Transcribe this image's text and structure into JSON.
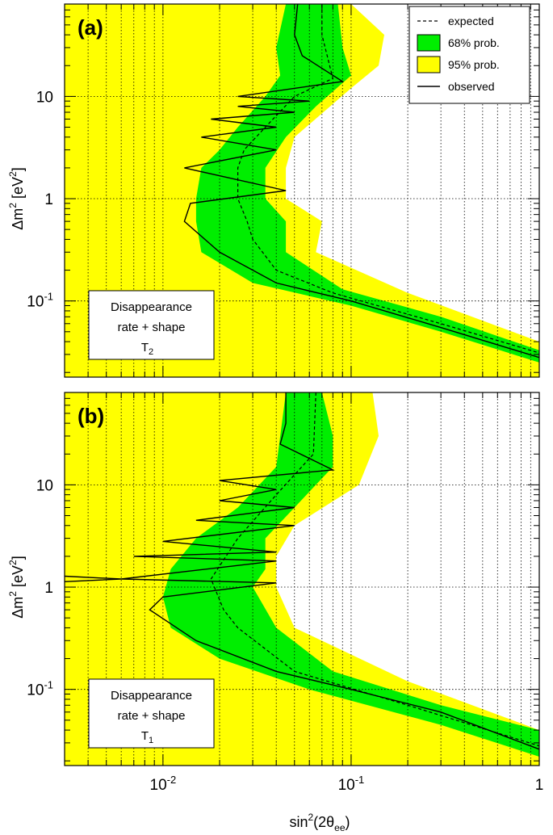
{
  "chart_data": {
    "type": "area",
    "xlabel": {
      "base": "sin",
      "sup": "2",
      "mid": "(2θ",
      "sub": "ee",
      "end": ")"
    },
    "ylabel": {
      "base": "Δm",
      "sup1": "2",
      "mid": " [eV",
      "sup2": "2",
      "end": "]"
    },
    "x_scale": "log",
    "y_scale": "log",
    "xlim": [
      0.003,
      1
    ],
    "ylim": [
      0.018,
      80
    ],
    "x_ticks": [
      {
        "value": 0.01,
        "base": "10",
        "exp": "-2"
      },
      {
        "value": 0.1,
        "base": "10",
        "exp": "-1"
      },
      {
        "value": 1,
        "base": "1",
        "exp": ""
      }
    ],
    "y_ticks": [
      {
        "value": 0.1,
        "base": "10",
        "exp": "-1"
      },
      {
        "value": 1,
        "base": "1",
        "exp": ""
      },
      {
        "value": 10,
        "base": "10",
        "exp": ""
      }
    ],
    "grid": true,
    "legend": {
      "placement": "top-right",
      "entries": [
        {
          "label": "expected",
          "style": "dashed"
        },
        {
          "label": "68% prob.",
          "color": "#00ee00"
        },
        {
          "label": "95% prob.",
          "color": "#ffff00"
        },
        {
          "label": "observed",
          "style": "solid"
        }
      ]
    },
    "colors": {
      "band68": "#00ee00",
      "band95": "#ffff00",
      "line": "#000000"
    },
    "panels": [
      {
        "tag": "(a)",
        "box_lines": [
          "Disappearance",
          "rate + shape"
        ],
        "box_stat": {
          "base": "T",
          "sub": "2"
        },
        "band95_right": [
          [
            0.1,
            80
          ],
          [
            0.15,
            40
          ],
          [
            0.14,
            20
          ],
          [
            0.1,
            12
          ],
          [
            0.05,
            4
          ],
          [
            0.045,
            2
          ],
          [
            0.045,
            1
          ],
          [
            0.07,
            0.6
          ],
          [
            0.065,
            0.3
          ],
          [
            0.2,
            0.12
          ],
          [
            1,
            0.04
          ]
        ],
        "band68_left": [
          [
            0.045,
            80
          ],
          [
            0.04,
            30
          ],
          [
            0.042,
            16
          ],
          [
            0.035,
            10
          ],
          [
            0.025,
            5
          ],
          [
            0.02,
            3
          ],
          [
            0.016,
            2
          ],
          [
            0.015,
            1
          ],
          [
            0.015,
            0.6
          ],
          [
            0.016,
            0.3
          ],
          [
            0.03,
            0.15
          ],
          [
            0.1,
            0.09
          ],
          [
            0.3,
            0.05
          ],
          [
            1,
            0.025
          ]
        ],
        "band68_right": [
          [
            0.085,
            80
          ],
          [
            0.09,
            30
          ],
          [
            0.1,
            16
          ],
          [
            0.065,
            8
          ],
          [
            0.045,
            4
          ],
          [
            0.035,
            2
          ],
          [
            0.035,
            1
          ],
          [
            0.045,
            0.6
          ],
          [
            0.045,
            0.3
          ],
          [
            0.09,
            0.13
          ],
          [
            0.3,
            0.07
          ],
          [
            1,
            0.033
          ]
        ],
        "expected": [
          [
            0.07,
            80
          ],
          [
            0.07,
            40
          ],
          [
            0.08,
            15
          ],
          [
            0.05,
            10
          ],
          [
            0.035,
            5
          ],
          [
            0.027,
            3
          ],
          [
            0.025,
            2
          ],
          [
            0.025,
            1
          ],
          [
            0.028,
            0.6
          ],
          [
            0.03,
            0.4
          ],
          [
            0.04,
            0.2
          ],
          [
            0.08,
            0.12
          ],
          [
            0.3,
            0.06
          ],
          [
            1,
            0.031
          ]
        ],
        "observed": [
          [
            0.052,
            80
          ],
          [
            0.05,
            40
          ],
          [
            0.055,
            25
          ],
          [
            0.09,
            14
          ],
          [
            0.025,
            10
          ],
          [
            0.06,
            9
          ],
          [
            0.025,
            8
          ],
          [
            0.05,
            7
          ],
          [
            0.018,
            6
          ],
          [
            0.04,
            5
          ],
          [
            0.016,
            4
          ],
          [
            0.04,
            3
          ],
          [
            0.013,
            2
          ],
          [
            0.045,
            1.2
          ],
          [
            0.014,
            0.9
          ],
          [
            0.013,
            0.6
          ],
          [
            0.02,
            0.3
          ],
          [
            0.04,
            0.15
          ],
          [
            0.1,
            0.1
          ],
          [
            0.3,
            0.055
          ],
          [
            1,
            0.028
          ]
        ]
      },
      {
        "tag": "(b)",
        "box_lines": [
          "Disappearance",
          "rate + shape"
        ],
        "box_stat": {
          "base": "T",
          "sub": "1"
        },
        "band95_right": [
          [
            0.13,
            80
          ],
          [
            0.14,
            30
          ],
          [
            0.11,
            10
          ],
          [
            0.05,
            4
          ],
          [
            0.04,
            2
          ],
          [
            0.04,
            1
          ],
          [
            0.05,
            0.4
          ],
          [
            0.2,
            0.12
          ],
          [
            1,
            0.04
          ]
        ],
        "band68_left": [
          [
            0.045,
            80
          ],
          [
            0.04,
            15
          ],
          [
            0.025,
            6
          ],
          [
            0.015,
            3
          ],
          [
            0.011,
            1.5
          ],
          [
            0.01,
            0.8
          ],
          [
            0.011,
            0.4
          ],
          [
            0.02,
            0.2
          ],
          [
            0.06,
            0.1
          ],
          [
            0.3,
            0.045
          ],
          [
            1,
            0.022
          ]
        ],
        "band68_right": [
          [
            0.07,
            80
          ],
          [
            0.08,
            30
          ],
          [
            0.08,
            15
          ],
          [
            0.05,
            6
          ],
          [
            0.035,
            3
          ],
          [
            0.035,
            1.5
          ],
          [
            0.03,
            1
          ],
          [
            0.04,
            0.4
          ],
          [
            0.08,
            0.15
          ],
          [
            0.3,
            0.07
          ],
          [
            1,
            0.04
          ]
        ],
        "expected": [
          [
            0.065,
            80
          ],
          [
            0.063,
            20
          ],
          [
            0.04,
            8
          ],
          [
            0.025,
            3
          ],
          [
            0.018,
            1.2
          ],
          [
            0.021,
            0.6
          ],
          [
            0.025,
            0.4
          ],
          [
            0.05,
            0.15
          ],
          [
            0.2,
            0.07
          ],
          [
            1,
            0.028
          ]
        ],
        "observed": [
          [
            0.045,
            80
          ],
          [
            0.045,
            40
          ],
          [
            0.042,
            25
          ],
          [
            0.08,
            14
          ],
          [
            0.02,
            11
          ],
          [
            0.04,
            9
          ],
          [
            0.02,
            7
          ],
          [
            0.05,
            6
          ],
          [
            0.015,
            4.5
          ],
          [
            0.05,
            4
          ],
          [
            0.01,
            2.8
          ],
          [
            0.04,
            2.2
          ],
          [
            0.007,
            2
          ],
          [
            0.04,
            1.8
          ],
          [
            0.006,
            1.2
          ],
          [
            0.04,
            1.1
          ],
          [
            0.01,
            0.8
          ],
          [
            0.0085,
            0.6
          ],
          [
            0.015,
            0.3
          ],
          [
            0.04,
            0.15
          ],
          [
            0.1,
            0.1
          ],
          [
            0.3,
            0.06
          ],
          [
            1,
            0.026
          ]
        ],
        "observed_spike": [
          [
            0.003,
            1.28
          ],
          [
            0.006,
            1.2
          ],
          [
            0.003,
            1.13
          ]
        ]
      }
    ]
  }
}
